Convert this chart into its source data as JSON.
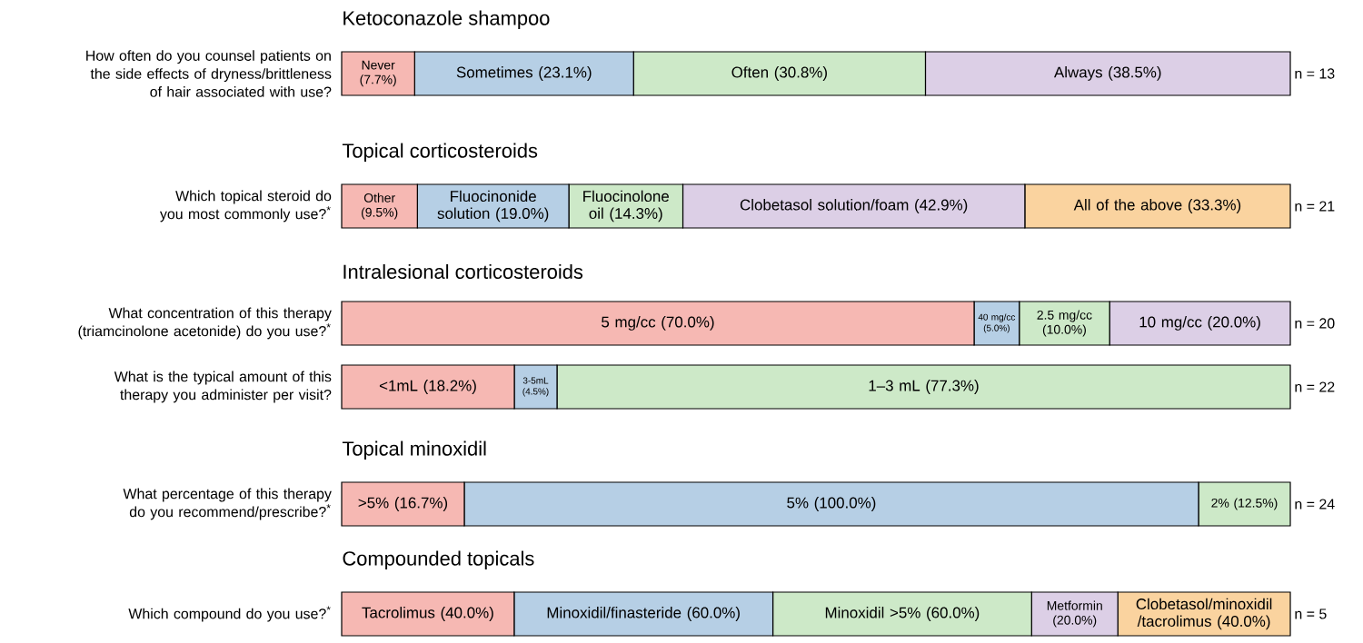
{
  "chart_data": [
    {
      "type": "bar",
      "orientation": "horizontal",
      "stacked": true,
      "title": "Ketoconazole shampoo",
      "categories": [
        "How often do you counsel patients on the side effects of dryness/brittleness of hair associated with use?"
      ],
      "annotations": [
        "n = 13"
      ],
      "series": [
        {
          "color": "#f6b8b3",
          "values": [
            7.7
          ],
          "value_labels": [
            "Never (7.7%)"
          ]
        },
        {
          "color": "#b6cfe5",
          "values": [
            23.1
          ],
          "value_labels": [
            "Sometimes (23.1%)"
          ]
        },
        {
          "color": "#cde9c8",
          "values": [
            30.8
          ],
          "value_labels": [
            "Often (30.8%)"
          ]
        },
        {
          "color": "#dccfe6",
          "values": [
            38.5
          ],
          "value_labels": [
            "Always (38.5%)"
          ]
        }
      ]
    },
    {
      "type": "bar",
      "orientation": "horizontal",
      "stacked": true,
      "title": "Topical corticosteroids",
      "categories": [
        "Which topical steroid do you most commonly use?$^{*}$"
      ],
      "annotations": [
        "n = 21"
      ],
      "series": [
        {
          "color": "#f6b8b3",
          "values": [
            9.5
          ],
          "value_labels": [
            "Other (9.5%)"
          ]
        },
        {
          "color": "#b6cfe5",
          "values": [
            19.0
          ],
          "value_labels": [
            "Fluocinonide solution (19.0%)"
          ]
        },
        {
          "color": "#cde9c8",
          "values": [
            14.3
          ],
          "value_labels": [
            "Fluocinolone oil (14.3%)"
          ]
        },
        {
          "color": "#dccfe6",
          "values": [
            42.9
          ],
          "value_labels": [
            "Clobetasol solution/foam (42.9%)"
          ]
        },
        {
          "color": "#fad39f",
          "values": [
            33.3
          ],
          "value_labels": [
            "All of the above (33.3%)"
          ]
        }
      ]
    },
    {
      "type": "bar",
      "orientation": "horizontal",
      "stacked": true,
      "title": "Intralesional corticosteroids",
      "categories": [
        "What concentration of this therapy (triamcinolone acetonide) do you use?$^{*}$"
      ],
      "annotations": [
        "n = 20"
      ],
      "series": [
        {
          "color": "#f6b8b3",
          "values": [
            70.0
          ],
          "value_labels": [
            "5 mg/cc (70.0%)"
          ]
        },
        {
          "color": "#b6cfe5",
          "values": [
            5.0
          ],
          "value_labels": [
            "40 mg/cc (5.0%)"
          ]
        },
        {
          "color": "#cde9c8",
          "values": [
            10.0
          ],
          "value_labels": [
            "2.5 mg/cc (10.0%)"
          ]
        },
        {
          "color": "#dccfe6",
          "values": [
            20.0
          ],
          "value_labels": [
            "10 mg/cc (20.0%)"
          ]
        }
      ]
    },
    {
      "type": "bar",
      "orientation": "horizontal",
      "stacked": true,
      "categories": [
        "What is the typical amount of this therapy you administer per visit?"
      ],
      "annotations": [
        "n = 22"
      ],
      "series": [
        {
          "color": "#f6b8b3",
          "values": [
            18.2
          ],
          "value_labels": [
            "<1mL (18.2%)"
          ]
        },
        {
          "color": "#b6cfe5",
          "values": [
            4.5
          ],
          "value_labels": [
            "3-5mL (4.5%)"
          ]
        },
        {
          "color": "#cde9c8",
          "values": [
            77.3
          ],
          "value_labels": [
            "1–3 mL (77.3%)"
          ]
        }
      ]
    },
    {
      "type": "bar",
      "orientation": "horizontal",
      "stacked": true,
      "title": "Topical minoxidil",
      "categories": [
        "What percentage of this therapy do you recommend/prescribe?$^{*}$"
      ],
      "annotations": [
        "n = 24"
      ],
      "series": [
        {
          "color": "#f6b8b3",
          "values": [
            16.7
          ],
          "value_labels": [
            ">5% (16.7%)"
          ]
        },
        {
          "color": "#b6cfe5",
          "values": [
            100.0
          ],
          "value_labels": [
            "5% (100.0%)"
          ]
        },
        {
          "color": "#cde9c8",
          "values": [
            12.5
          ],
          "value_labels": [
            "2% (12.5%)"
          ]
        }
      ]
    },
    {
      "type": "bar",
      "orientation": "horizontal",
      "stacked": true,
      "title": "Compounded topicals",
      "categories": [
        "Which compound do you use?$^{*}$"
      ],
      "annotations": [
        "n = 5"
      ],
      "series": [
        {
          "color": "#f6b8b3",
          "values": [
            40.0
          ],
          "value_labels": [
            "Tacrolimus (40.0%)"
          ]
        },
        {
          "color": "#b6cfe5",
          "values": [
            60.0
          ],
          "value_labels": [
            "Minoxidil/finasteride (60.0%)"
          ]
        },
        {
          "color": "#cde9c8",
          "values": [
            60.0
          ],
          "value_labels": [
            "Minoxidil >5% (60.0%)"
          ]
        },
        {
          "color": "#dccfe6",
          "values": [
            20.0
          ],
          "value_labels": [
            "Metformin (20.0%)"
          ]
        },
        {
          "color": "#fad39f",
          "values": [
            40.0
          ],
          "value_labels": [
            "Clobetasol/minoxidil /tacrolimus (40.0%)"
          ]
        }
      ]
    }
  ]
}
